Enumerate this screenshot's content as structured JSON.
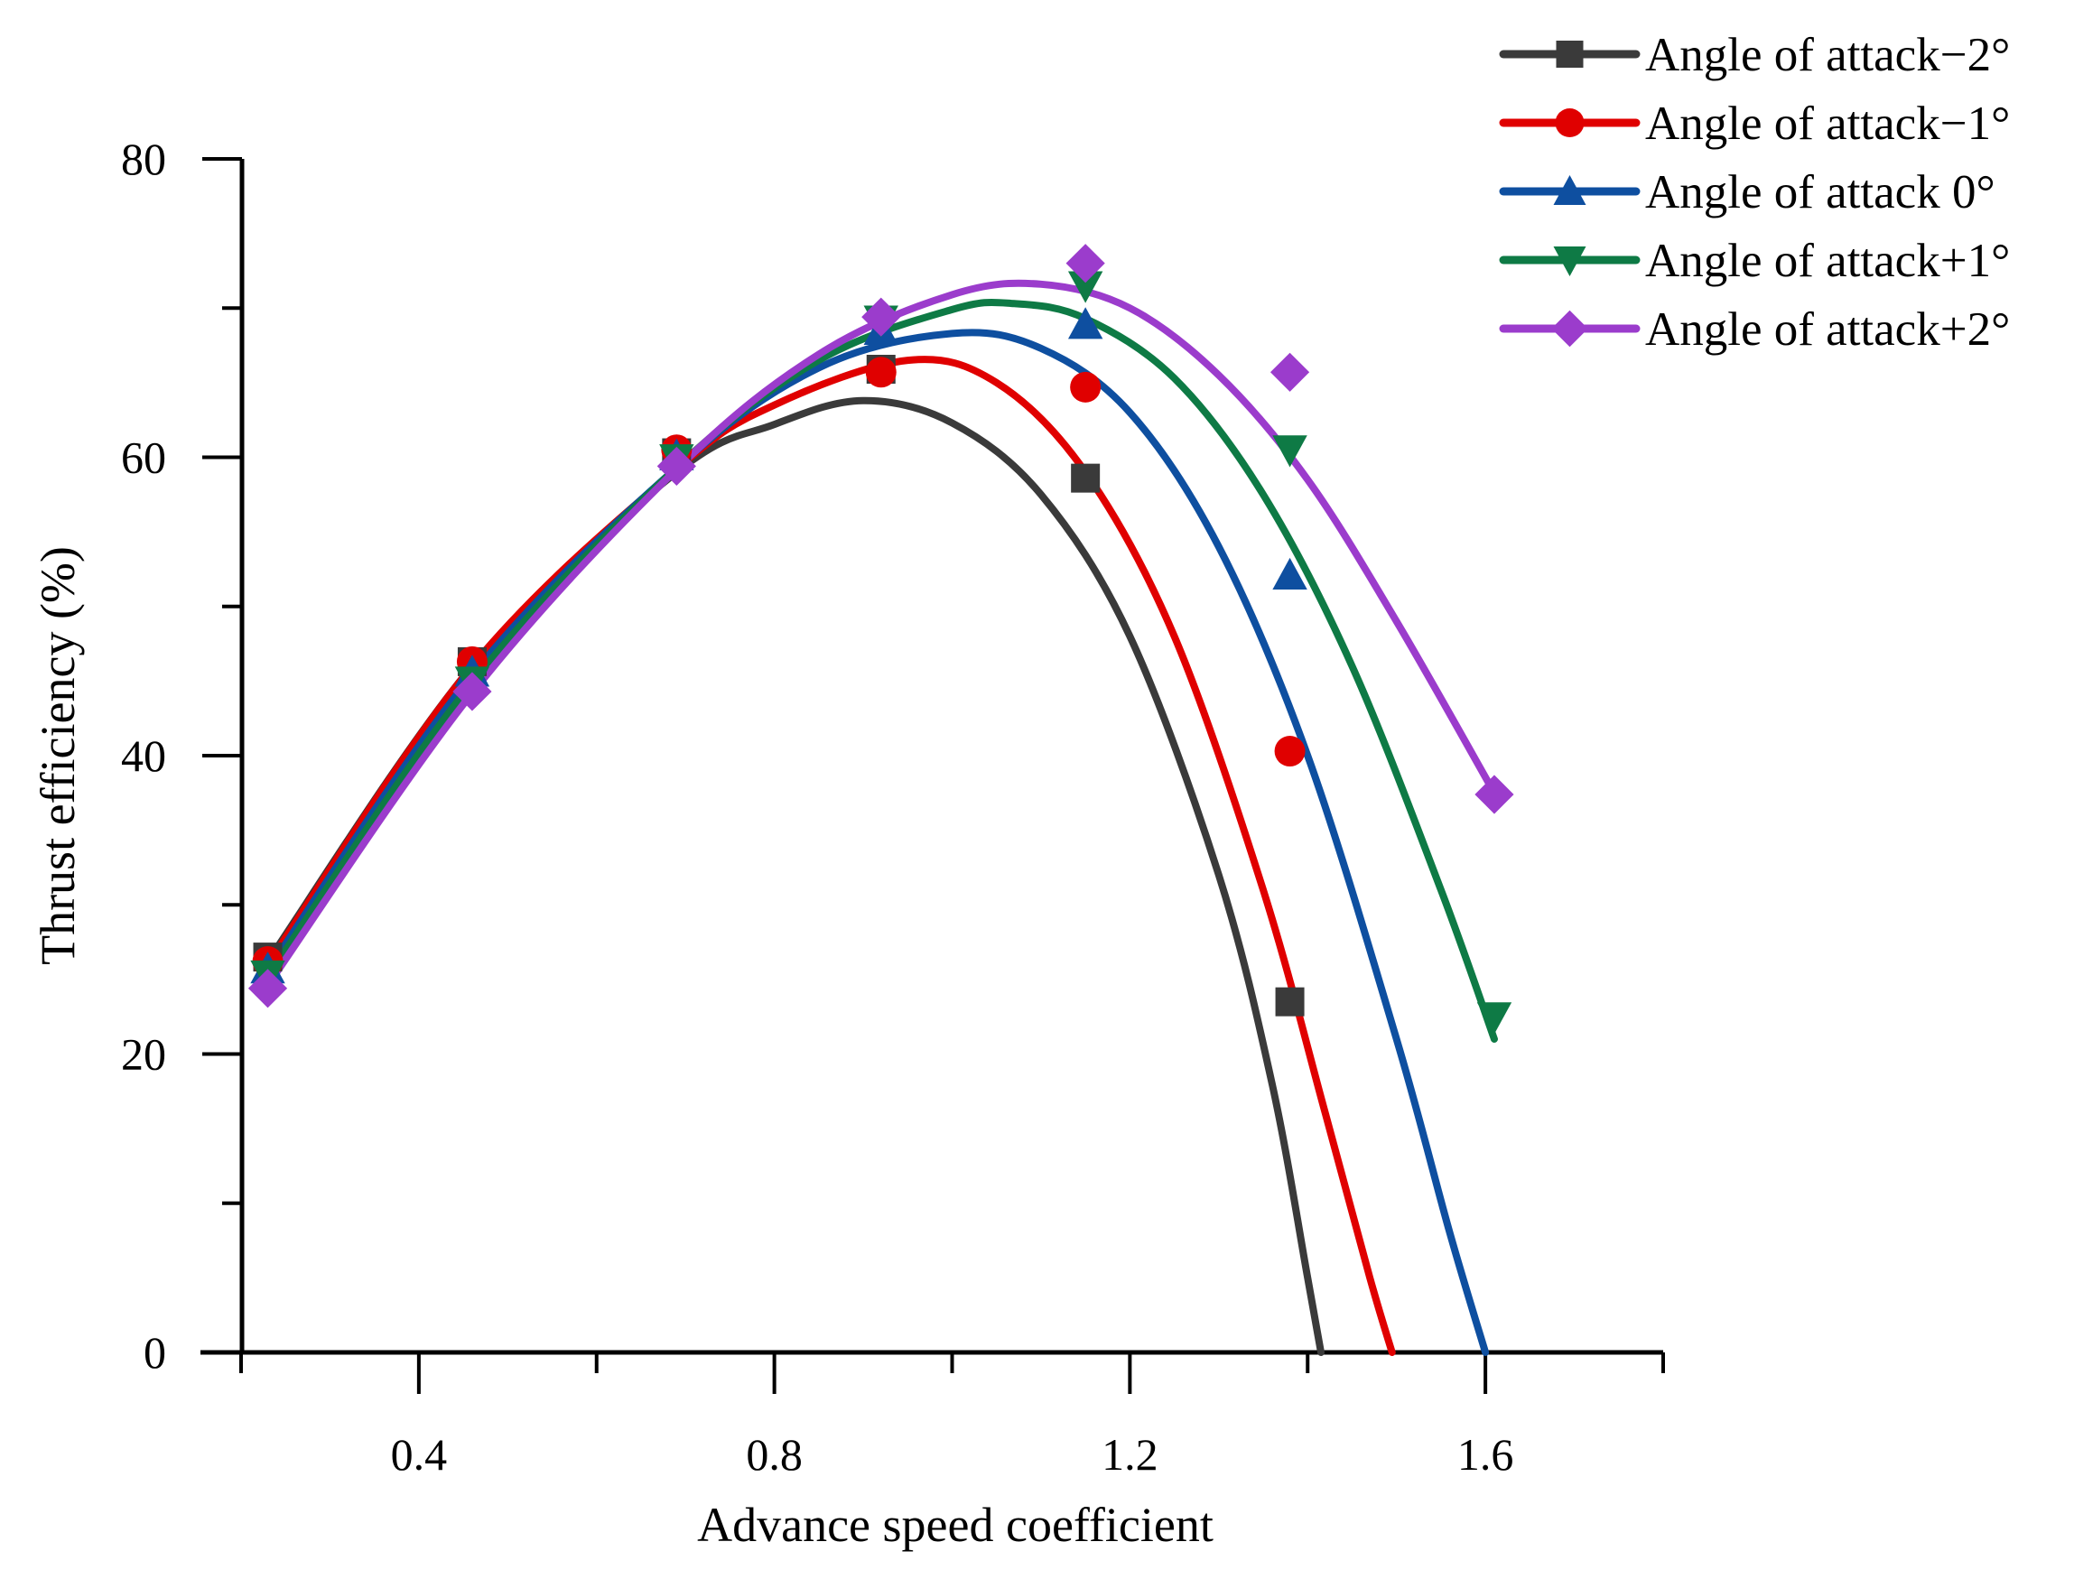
{
  "chart_data": {
    "type": "line",
    "title": "",
    "xlabel": "Advance speed coefficient",
    "ylabel": "Thrust efficiency (%)",
    "xlim": [
      0.2,
      1.8
    ],
    "ylim": [
      0,
      80
    ],
    "xticks": [
      0.4,
      0.8,
      1.2,
      1.6
    ],
    "xtick_labels": [
      "0.4",
      "0.8",
      "1.2",
      "1.6"
    ],
    "xminor": [
      0.2,
      0.6,
      1.0,
      1.4,
      1.8
    ],
    "yticks": [
      0,
      20,
      40,
      60,
      80
    ],
    "ytick_labels": [
      "0",
      "20",
      "40",
      "60",
      "80"
    ],
    "yminor": [
      10,
      30,
      50,
      70
    ],
    "grid": false,
    "legend_position": "top-right",
    "series": [
      {
        "name": "Angle of attack−2°",
        "color": "#3a3a3a",
        "marker": "square",
        "points": [
          [
            0.23,
            26.5
          ],
          [
            0.46,
            46.3
          ],
          [
            0.69,
            60.3
          ],
          [
            0.92,
            65.9
          ],
          [
            1.15,
            58.6
          ],
          [
            1.38,
            23.5
          ]
        ],
        "fit": [
          [
            0.23,
            26.2
          ],
          [
            0.46,
            46.0
          ],
          [
            0.69,
            59.0
          ],
          [
            0.8,
            62.2
          ],
          [
            0.9,
            63.8
          ],
          [
            1.0,
            62.3
          ],
          [
            1.1,
            57.5
          ],
          [
            1.2,
            48.0
          ],
          [
            1.3,
            32.0
          ],
          [
            1.36,
            18.0
          ],
          [
            1.4,
            5.0
          ],
          [
            1.415,
            0.0
          ]
        ]
      },
      {
        "name": "Angle of attack−1°",
        "color": "#e00000",
        "marker": "circle",
        "points": [
          [
            0.23,
            26.2
          ],
          [
            0.46,
            46.3
          ],
          [
            0.69,
            60.5
          ],
          [
            0.92,
            65.7
          ],
          [
            1.15,
            64.7
          ],
          [
            1.38,
            40.3
          ]
        ],
        "fit": [
          [
            0.23,
            26.0
          ],
          [
            0.46,
            46.0
          ],
          [
            0.69,
            59.2
          ],
          [
            0.8,
            63.5
          ],
          [
            0.95,
            66.5
          ],
          [
            1.05,
            65.0
          ],
          [
            1.15,
            59.0
          ],
          [
            1.25,
            48.0
          ],
          [
            1.35,
            31.0
          ],
          [
            1.42,
            16.0
          ],
          [
            1.47,
            5.0
          ],
          [
            1.495,
            0.0
          ]
        ]
      },
      {
        "name": "Angle of attack 0°",
        "color": "#0e4fa0",
        "marker": "triangle-up",
        "points": [
          [
            0.23,
            25.7
          ],
          [
            0.46,
            45.6
          ],
          [
            0.69,
            60.1
          ],
          [
            0.92,
            68.5
          ],
          [
            1.15,
            68.9
          ],
          [
            1.38,
            52.1
          ]
        ],
        "fit": [
          [
            0.23,
            25.6
          ],
          [
            0.46,
            45.4
          ],
          [
            0.69,
            59.3
          ],
          [
            0.85,
            66.0
          ],
          [
            1.0,
            68.3
          ],
          [
            1.1,
            67.3
          ],
          [
            1.2,
            63.0
          ],
          [
            1.3,
            54.0
          ],
          [
            1.4,
            40.0
          ],
          [
            1.5,
            21.0
          ],
          [
            1.56,
            8.0
          ],
          [
            1.6,
            0.0
          ]
        ]
      },
      {
        "name": "Angle of attack+1°",
        "color": "#0e7a45",
        "marker": "triangle-down",
        "points": [
          [
            0.23,
            25.3
          ],
          [
            0.46,
            45.0
          ],
          [
            0.69,
            59.9
          ],
          [
            0.92,
            69.2
          ],
          [
            1.15,
            71.5
          ],
          [
            1.38,
            60.5
          ],
          [
            1.61,
            22.5
          ]
        ],
        "fit": [
          [
            0.23,
            25.2
          ],
          [
            0.46,
            44.9
          ],
          [
            0.69,
            59.3
          ],
          [
            0.85,
            66.5
          ],
          [
            1.0,
            69.9
          ],
          [
            1.07,
            70.3
          ],
          [
            1.15,
            69.3
          ],
          [
            1.25,
            65.3
          ],
          [
            1.35,
            57.5
          ],
          [
            1.45,
            46.0
          ],
          [
            1.55,
            31.0
          ],
          [
            1.61,
            21.0
          ]
        ]
      },
      {
        "name": "Angle of attack+2°",
        "color": "#9b3ccc",
        "marker": "diamond",
        "points": [
          [
            0.23,
            24.4
          ],
          [
            0.46,
            44.3
          ],
          [
            0.69,
            59.4
          ],
          [
            0.92,
            69.4
          ],
          [
            1.15,
            73.0
          ],
          [
            1.38,
            65.7
          ],
          [
            1.61,
            37.4
          ]
        ],
        "fit": [
          [
            0.23,
            24.6
          ],
          [
            0.46,
            44.2
          ],
          [
            0.69,
            59.2
          ],
          [
            0.85,
            66.9
          ],
          [
            1.0,
            70.9
          ],
          [
            1.1,
            71.6
          ],
          [
            1.2,
            70.0
          ],
          [
            1.3,
            65.5
          ],
          [
            1.4,
            58.5
          ],
          [
            1.5,
            49.0
          ],
          [
            1.61,
            37.5
          ]
        ]
      }
    ]
  }
}
